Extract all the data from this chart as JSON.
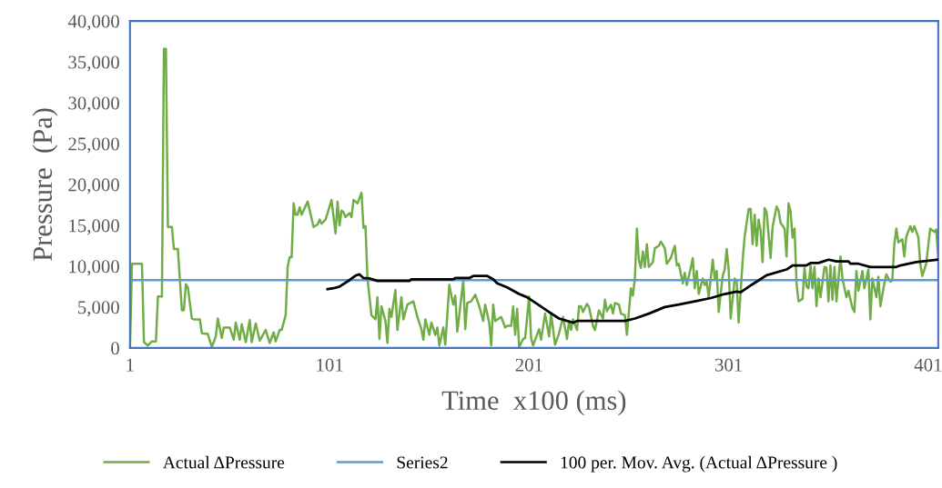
{
  "chart_data": {
    "type": "line",
    "xlabel": "Time  x100 (ms)",
    "ylabel": "Pressure  (Pa)",
    "xlim": [
      1,
      406
    ],
    "xticks": [
      1,
      101,
      201,
      301,
      401
    ],
    "ylim": [
      0,
      40000
    ],
    "yticks": [
      {
        "value": 0,
        "label": "0"
      },
      {
        "value": 5000,
        "label": "5,000"
      },
      {
        "value": 10000,
        "label": "10,000"
      },
      {
        "value": 15000,
        "label": "15,000"
      },
      {
        "value": 20000,
        "label": "20,000"
      },
      {
        "value": 25000,
        "label": "25,000"
      },
      {
        "value": 30000,
        "label": "30,000"
      },
      {
        "value": 35000,
        "label": "35,000"
      },
      {
        "value": 40000,
        "label": "40,000"
      }
    ],
    "grid": false,
    "legend": "bottom",
    "marker": "none",
    "line_style": "solid",
    "series": [
      {
        "name": "Actual ΔPressure",
        "color": "#70ad47",
        "x": [
          1,
          2,
          7,
          8,
          10,
          12,
          14,
          15,
          17,
          18,
          19,
          20,
          22,
          23,
          25,
          27,
          28,
          29,
          30,
          32,
          33,
          36,
          37,
          40,
          42,
          44,
          45,
          47,
          48,
          51,
          53,
          54,
          56,
          57,
          59,
          61,
          62,
          64,
          66,
          69,
          71,
          73,
          74,
          76,
          77,
          79,
          80,
          81,
          82,
          83,
          84,
          85,
          86,
          87,
          90,
          93,
          95,
          96,
          97,
          99,
          102,
          104,
          105,
          106,
          107,
          108,
          109,
          111,
          112,
          113,
          115,
          117,
          118,
          119,
          120,
          122,
          124,
          125,
          126,
          127,
          129,
          130,
          131,
          132,
          134,
          135,
          137,
          138,
          140,
          143,
          145,
          147,
          148,
          149,
          151,
          152,
          154,
          155,
          156,
          158,
          159,
          161,
          163,
          164,
          165,
          166,
          168,
          169,
          170,
          172,
          174,
          176,
          178,
          179,
          181,
          182,
          183,
          184,
          187,
          189,
          190,
          192,
          193,
          194,
          195,
          196,
          198,
          199,
          201,
          202,
          203,
          206,
          207,
          209,
          211,
          212,
          214,
          216,
          218,
          220,
          221,
          222,
          223,
          225,
          226,
          227,
          228,
          230,
          231,
          233,
          234,
          236,
          238,
          239,
          240,
          242,
          243,
          244,
          246,
          247,
          249,
          250,
          252,
          253,
          254,
          255,
          256,
          257,
          258,
          259,
          260,
          261,
          263,
          264,
          266,
          267,
          269,
          270,
          272,
          274,
          275,
          276,
          278,
          279,
          280,
          282,
          283,
          284,
          285,
          286,
          288,
          289,
          290,
          291,
          293,
          294,
          295,
          296,
          298,
          299,
          300,
          301,
          302,
          304,
          305,
          306,
          308,
          309,
          311,
          312,
          313,
          314,
          315,
          316,
          317,
          318,
          319,
          320,
          322,
          323,
          325,
          326,
          327,
          329,
          330,
          331,
          332,
          333,
          334,
          335,
          336,
          338,
          339,
          340,
          341,
          342,
          343,
          344,
          345,
          346,
          347,
          349,
          350,
          351,
          352,
          353,
          354,
          355,
          357,
          358,
          360,
          361,
          363,
          364,
          365,
          366,
          368,
          369,
          371,
          372,
          373,
          375,
          376,
          377,
          379,
          380,
          382,
          383,
          384,
          385,
          386,
          388,
          389,
          390,
          392,
          393,
          394,
          396,
          397,
          398,
          400,
          401,
          402,
          404,
          405,
          406
        ],
        "values": [
          0,
          10300,
          10300,
          700,
          300,
          800,
          800,
          6300,
          6300,
          36600,
          36600,
          14800,
          14800,
          12100,
          12100,
          4600,
          4600,
          7800,
          7400,
          3600,
          3500,
          3500,
          1800,
          1700,
          100,
          1400,
          3600,
          1200,
          2500,
          2500,
          1000,
          3100,
          1000,
          2900,
          700,
          3400,
          700,
          3000,
          900,
          2200,
          600,
          1900,
          800,
          2200,
          2200,
          4000,
          9900,
          11100,
          11100,
          17700,
          16300,
          16300,
          17200,
          16300,
          17900,
          14800,
          15100,
          15700,
          15200,
          15700,
          18100,
          14000,
          17900,
          15000,
          16800,
          16600,
          16000,
          16500,
          16000,
          18100,
          17700,
          19000,
          14700,
          14900,
          8500,
          4000,
          3500,
          6200,
          1100,
          5100,
          3300,
          600,
          4800,
          3800,
          7100,
          2200,
          6200,
          3500,
          5300,
          5700,
          3800,
          2300,
          1000,
          3500,
          1600,
          3100,
          1600,
          2500,
          300,
          2500,
          400,
          7700,
          5300,
          6400,
          2000,
          4000,
          8300,
          2300,
          5500,
          5700,
          6500,
          5100,
          3300,
          5300,
          3100,
          300,
          5300,
          3300,
          3800,
          2500,
          2700,
          2700,
          5100,
          1600,
          4800,
          100,
          1100,
          1200,
          6300,
          1200,
          300,
          2300,
          1000,
          4200,
          1400,
          4200,
          400,
          1800,
          3800,
          1100,
          3300,
          2200,
          3500,
          2200,
          5100,
          5100,
          4400,
          5400,
          5000,
          2700,
          2200,
          4600,
          3600,
          5900,
          4500,
          5300,
          4200,
          5500,
          5300,
          4200,
          4000,
          1600,
          7300,
          6400,
          8500,
          14600,
          10700,
          9800,
          11800,
          9900,
          12700,
          9900,
          10500,
          12200,
          12500,
          13000,
          12200,
          10300,
          11000,
          12500,
          10100,
          10300,
          7900,
          9200,
          7700,
          9800,
          11000,
          7300,
          9400,
          6600,
          8500,
          7700,
          8100,
          6200,
          10800,
          8500,
          9400,
          4400,
          8800,
          9600,
          12100,
          9600,
          3600,
          8500,
          8100,
          3100,
          10700,
          13600,
          17000,
          17000,
          12700,
          16300,
          12500,
          15700,
          14400,
          10500,
          17100,
          16600,
          11000,
          14800,
          17300,
          16800,
          15300,
          14600,
          11200,
          17700,
          16700,
          13500,
          14600,
          7900,
          5700,
          6000,
          9800,
          7500,
          7300,
          10100,
          7300,
          9900,
          5100,
          8500,
          6200,
          9900,
          9800,
          5700,
          10100,
          5900,
          9900,
          5700,
          11200,
          8500,
          6200,
          7000,
          4900,
          4400,
          9400,
          7000,
          9400,
          7300,
          9600,
          3500,
          8500,
          6200,
          8700,
          5100,
          7900,
          9000,
          8100,
          8300,
          12700,
          14600,
          12900,
          13300,
          11200,
          13600,
          14900,
          14200,
          14900,
          13600,
          10300,
          8800,
          10300,
          12500,
          14600,
          14200,
          14500,
          11100
        ]
      },
      {
        "name": "Series2",
        "color": "#5b9bd5",
        "x": [
          1,
          406
        ],
        "values": [
          8300,
          8300
        ]
      },
      {
        "name": "100 per. Mov. Avg. (Actual ΔPressure )",
        "color": "#000000",
        "x": [
          100,
          103,
          106,
          111,
          114,
          116,
          118,
          121,
          125,
          141,
          142,
          163,
          164,
          171,
          173,
          180,
          183,
          185,
          190,
          196,
          200,
          205,
          211,
          216,
          220,
          223,
          225,
          249,
          254,
          261,
          269,
          276,
          284,
          292,
          299,
          305,
          307,
          313,
          320,
          330,
          333,
          340,
          342,
          346,
          351,
          353,
          355,
          361,
          362,
          366,
          372,
          385,
          387,
          395,
          406
        ],
        "values": [
          7200,
          7300,
          7500,
          8300,
          8850,
          9000,
          8550,
          8500,
          8200,
          8200,
          8400,
          8400,
          8550,
          8550,
          8800,
          8800,
          8400,
          7900,
          7400,
          6600,
          6200,
          5400,
          4400,
          3600,
          3300,
          3100,
          3300,
          3300,
          3600,
          4200,
          5000,
          5300,
          5700,
          6100,
          6600,
          6900,
          6800,
          7800,
          8900,
          9600,
          10100,
          10100,
          10400,
          10400,
          10800,
          10700,
          10600,
          10600,
          10300,
          10300,
          9900,
          9900,
          10100,
          10500,
          10800
        ]
      }
    ]
  }
}
